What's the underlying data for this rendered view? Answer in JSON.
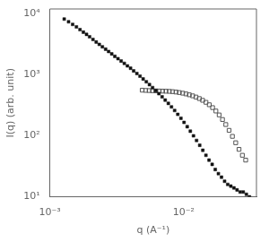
{
  "chart_data": {
    "type": "scatter",
    "xlabel": "q (A⁻¹)",
    "ylabel": "I(q) (arb. unit)",
    "log": true,
    "grid": false,
    "xlim": [
      0.001,
      0.035
    ],
    "ylim": [
      10,
      12000
    ],
    "xticks": [
      {
        "value": 0.001,
        "label": "10⁻³"
      },
      {
        "value": 0.01,
        "label": "10⁻²"
      }
    ],
    "yticks": [
      {
        "value": 10,
        "label": "10¹"
      },
      {
        "value": 100,
        "label": "10²"
      },
      {
        "value": 1000,
        "label": "10³"
      },
      {
        "value": 10000,
        "label": "10⁴"
      }
    ],
    "series": [
      {
        "color": "#111111",
        "marker": "square",
        "x": [
          0.00128,
          0.00138,
          0.00148,
          0.00158,
          0.00168,
          0.00178,
          0.00188,
          0.00198,
          0.0021,
          0.00222,
          0.00234,
          0.00247,
          0.00261,
          0.00275,
          0.0029,
          0.00306,
          0.00323,
          0.00341,
          0.0036,
          0.0038,
          0.00401,
          0.00423,
          0.00447,
          0.00472,
          0.00498,
          0.00526,
          0.00555,
          0.00586,
          0.00619,
          0.00653,
          0.0069,
          0.00728,
          0.00768,
          0.00811,
          0.00856,
          0.00904,
          0.00954,
          0.01007,
          0.01063,
          0.01122,
          0.01184,
          0.01249,
          0.01318,
          0.01391,
          0.01467,
          0.01548,
          0.01633,
          0.01723,
          0.01818,
          0.01918,
          0.02023,
          0.02135,
          0.02252,
          0.02376,
          0.02507,
          0.02644,
          0.02789,
          0.02942,
          0.03103
        ],
        "values": [
          8200,
          7400,
          6700,
          6100,
          5500,
          5000,
          4600,
          4200,
          3800,
          3450,
          3150,
          2880,
          2630,
          2410,
          2200,
          2010,
          1840,
          1680,
          1540,
          1400,
          1280,
          1160,
          1050,
          950,
          855,
          770,
          690,
          618,
          550,
          490,
          435,
          385,
          340,
          298,
          260,
          225,
          194,
          166,
          141,
          119,
          100,
          84,
          70,
          58,
          48,
          40,
          34,
          28,
          24,
          21,
          18,
          16,
          15,
          14,
          13,
          12,
          12,
          11,
          10
        ]
      },
      {
        "color": "#555555",
        "marker": "hollow-square",
        "x": [
          0.0049,
          0.0052,
          0.00552,
          0.00585,
          0.0062,
          0.00657,
          0.00696,
          0.00737,
          0.00781,
          0.00827,
          0.00876,
          0.00928,
          0.00983,
          0.01041,
          0.01102,
          0.01167,
          0.01236,
          0.01309,
          0.01386,
          0.01468,
          0.01554,
          0.01645,
          0.01741,
          0.01843,
          0.01951,
          0.02065,
          0.02186,
          0.02314,
          0.0245,
          0.02594,
          0.02747,
          0.02908
        ],
        "values": [
          560,
          555,
          552,
          548,
          545,
          543,
          540,
          538,
          535,
          530,
          522,
          512,
          500,
          486,
          470,
          452,
          432,
          408,
          382,
          354,
          323,
          290,
          255,
          220,
          185,
          153,
          123,
          98,
          77,
          60,
          48,
          40
        ]
      }
    ]
  }
}
